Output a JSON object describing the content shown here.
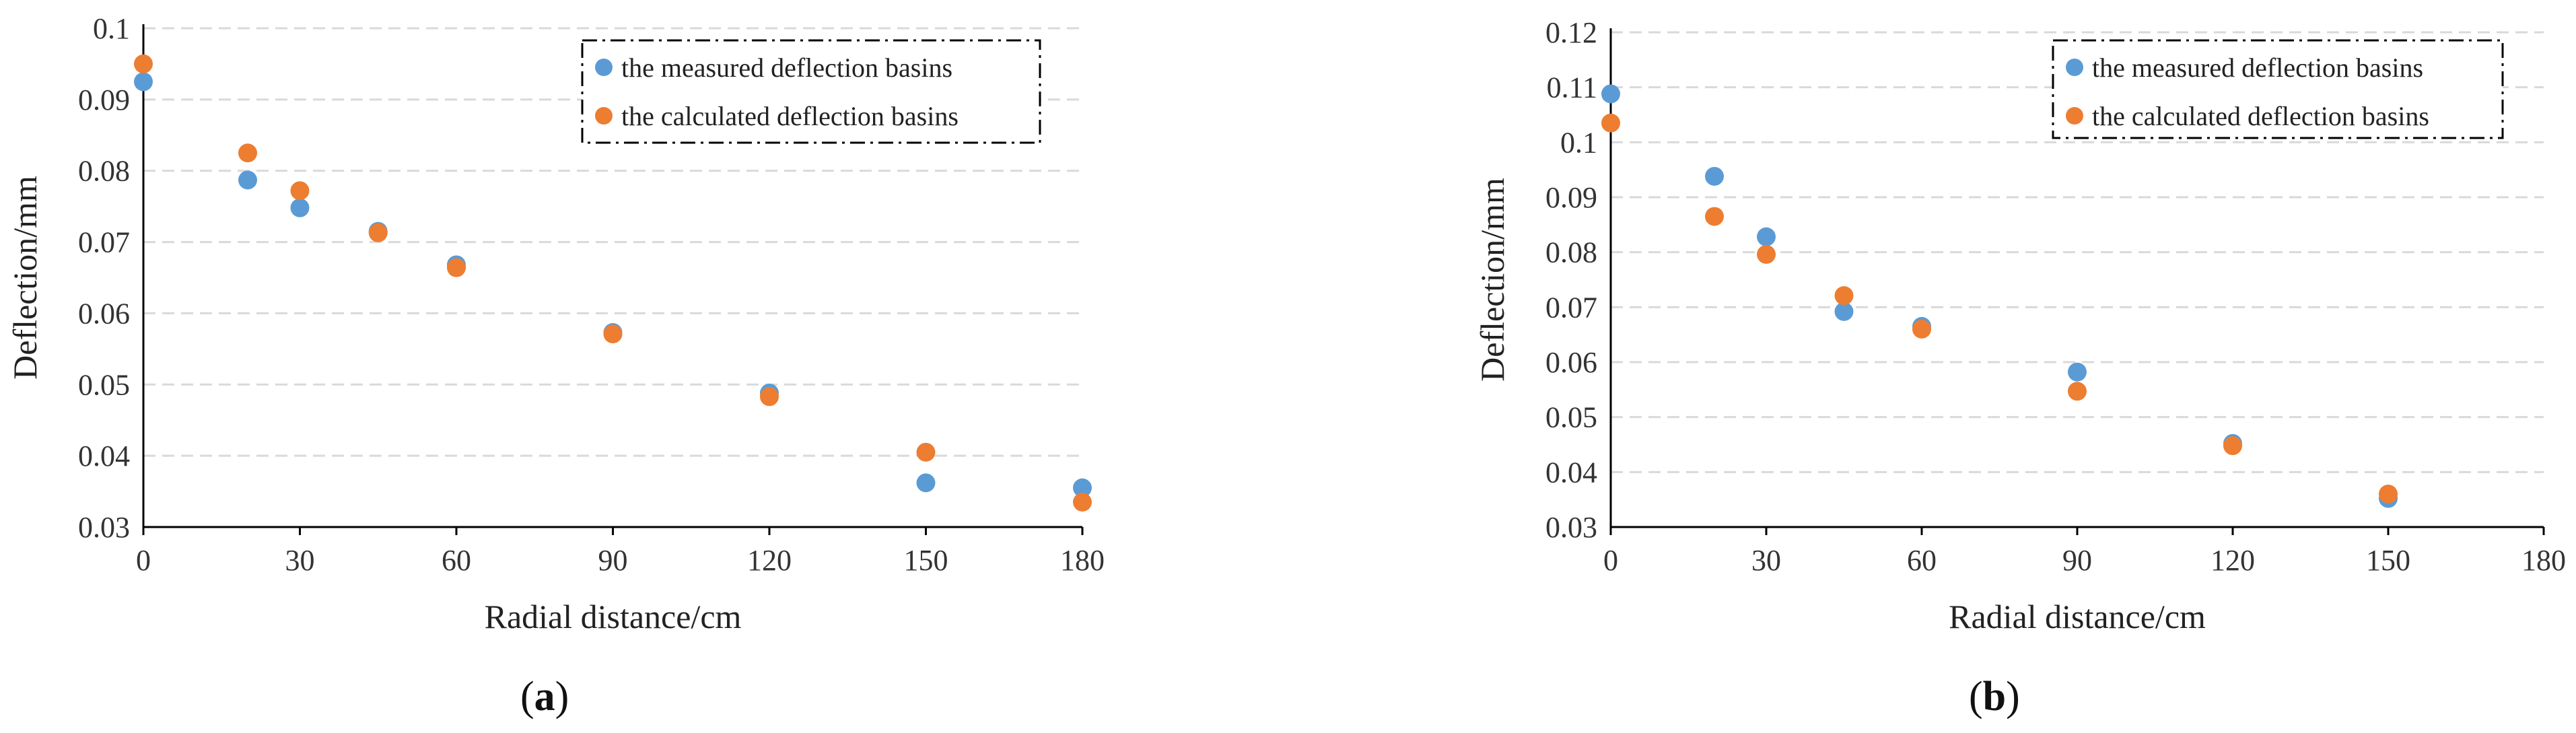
{
  "chart_data": [
    {
      "type": "scatter",
      "panel_label": "a",
      "xlabel": "Radial distance/cm",
      "ylabel": "Deflection/mm",
      "xlim": [
        0,
        180
      ],
      "ylim": [
        0.03,
        0.1
      ],
      "xticks": [
        "0",
        "30",
        "60",
        "90",
        "120",
        "150",
        "180"
      ],
      "yticks": [
        "0.03",
        "0.04",
        "0.05",
        "0.06",
        "0.07",
        "0.08",
        "0.09",
        "0.1"
      ],
      "grid": true,
      "legend_position": "top-right",
      "series": [
        {
          "name": "the measured deflection basins",
          "color": "#5b9bd5",
          "x": [
            0,
            20,
            30,
            45,
            60,
            90,
            120,
            150,
            180
          ],
          "y": [
            0.0925,
            0.0787,
            0.0748,
            0.0715,
            0.0668,
            0.0573,
            0.0488,
            0.0362,
            0.0355
          ]
        },
        {
          "name": "the calculated deflection basins",
          "color": "#ed7d31",
          "x": [
            0,
            20,
            30,
            45,
            60,
            90,
            120,
            150,
            180
          ],
          "y": [
            0.095,
            0.0825,
            0.0772,
            0.0713,
            0.0664,
            0.0571,
            0.0483,
            0.0405,
            0.0335
          ]
        }
      ]
    },
    {
      "type": "scatter",
      "panel_label": "b",
      "xlabel": "Radial distance/cm",
      "ylabel": "Deflection/mm",
      "xlim": [
        0,
        180
      ],
      "ylim": [
        0.03,
        0.12
      ],
      "xticks": [
        "0",
        "30",
        "60",
        "90",
        "120",
        "150",
        "180"
      ],
      "yticks": [
        "0.03",
        "0.04",
        "0.05",
        "0.06",
        "0.07",
        "0.08",
        "0.09",
        "0.1",
        "0.11",
        "0.12"
      ],
      "grid": true,
      "legend_position": "top-right",
      "series": [
        {
          "name": "the measured deflection basins",
          "color": "#5b9bd5",
          "x": [
            0,
            20,
            30,
            45,
            60,
            90,
            120,
            150
          ],
          "y": [
            0.1088,
            0.0938,
            0.0828,
            0.0692,
            0.0665,
            0.0582,
            0.0452,
            0.0352
          ]
        },
        {
          "name": "the calculated deflection basins",
          "color": "#ed7d31",
          "x": [
            0,
            20,
            30,
            45,
            60,
            90,
            120,
            150
          ],
          "y": [
            0.1035,
            0.0865,
            0.0796,
            0.0721,
            0.066,
            0.0547,
            0.0448,
            0.036
          ]
        }
      ]
    }
  ],
  "captions": {
    "a": {
      "open": "(",
      "letter": "a",
      "close": ")"
    },
    "b": {
      "open": "(",
      "letter": "b",
      "close": ")"
    }
  }
}
